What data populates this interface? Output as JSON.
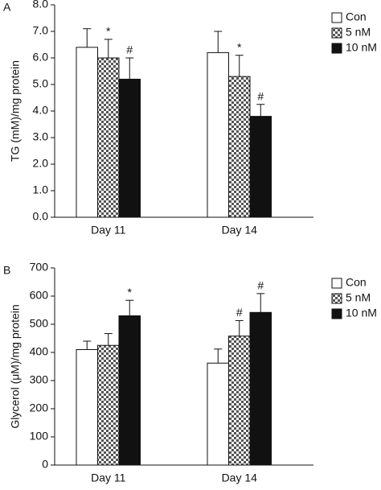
{
  "chart_data": [
    {
      "type": "bar",
      "panel": "A",
      "ylabel": "TG (mM)/mg protein",
      "categories": [
        "Day 11",
        "Day 14"
      ],
      "ylim": [
        0,
        8
      ],
      "yticks": [
        {
          "value": 0,
          "label": "0.0"
        },
        {
          "value": 1,
          "label": "1.0"
        },
        {
          "value": 2,
          "label": "2.0"
        },
        {
          "value": 3,
          "label": "3.0"
        },
        {
          "value": 4,
          "label": "4.0"
        },
        {
          "value": 5,
          "label": "5.0"
        },
        {
          "value": 6,
          "label": "6.0"
        },
        {
          "value": 7,
          "label": "7.0"
        },
        {
          "value": 8,
          "label": "8.0"
        }
      ],
      "legend": "upper right",
      "series": [
        {
          "name": "Con",
          "color": "#ffffff",
          "values": [
            6.4,
            6.2
          ],
          "errors": [
            0.7,
            0.8
          ],
          "annotations": [
            null,
            null
          ]
        },
        {
          "name": "5 nM",
          "color": "#ffffff",
          "pattern": "crosshatch",
          "values": [
            6.0,
            5.3
          ],
          "errors": [
            0.7,
            0.8
          ],
          "annotations": [
            "*",
            "*"
          ]
        },
        {
          "name": "10 nM",
          "color": "#111111",
          "values": [
            5.2,
            3.8
          ],
          "errors": [
            0.8,
            0.45
          ],
          "annotations": [
            "#",
            "#"
          ]
        }
      ]
    },
    {
      "type": "bar",
      "panel": "B",
      "ylabel": "Glycerol (μM)/mg protein",
      "categories": [
        "Day 11",
        "Day 14"
      ],
      "ylim": [
        0,
        700
      ],
      "yticks": [
        0,
        100,
        200,
        300,
        400,
        500,
        600,
        700
      ],
      "legend": "upper right",
      "series": [
        {
          "name": "Con",
          "color": "#ffffff",
          "values": [
            410,
            362
          ],
          "errors": [
            30,
            50
          ],
          "annotations": [
            null,
            null
          ]
        },
        {
          "name": "5 nM",
          "color": "#ffffff",
          "pattern": "crosshatch",
          "values": [
            425,
            458
          ],
          "errors": [
            42,
            55
          ],
          "annotations": [
            null,
            "#"
          ]
        },
        {
          "name": "10 nM",
          "color": "#111111",
          "values": [
            530,
            542
          ],
          "errors": [
            55,
            67
          ],
          "annotations": [
            "*",
            "#"
          ]
        }
      ]
    }
  ]
}
